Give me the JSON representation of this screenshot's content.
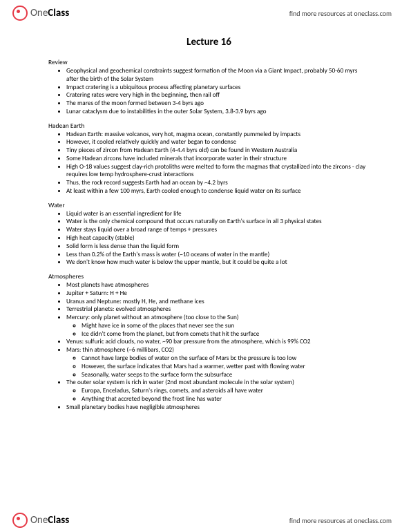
{
  "brand": {
    "prefix": "One",
    "suffix": "Class",
    "icon_color": "#e63946"
  },
  "header_link": "find more resources at oneclass.com",
  "footer_link": "find more resources at oneclass.com",
  "title": "Lecture 16",
  "sections": [
    {
      "heading": "Review",
      "items": [
        {
          "t": "Geophysical and geochemical constraints suggest formation of the Moon via a Giant Impact, probably 50-60 myrs after the birth of the Solar System"
        },
        {
          "t": "Impact cratering is a ubiquitous process affecting planetary surfaces"
        },
        {
          "t": "Cratering rates were very high in the beginning, then rail off"
        },
        {
          "t": "The mares of the moon formed between 3-4 byrs ago"
        },
        {
          "t": "Lunar cataclysm due to instabilities in the outer Solar System, 3.8-3.9 byrs ago"
        }
      ]
    },
    {
      "heading": "Hadean Earth",
      "items": [
        {
          "t": "Hadean Earth: massive volcanos, very hot, magma ocean, constantly pummeled by impacts"
        },
        {
          "t": "However, it cooled relatively quickly and water began to condense"
        },
        {
          "t": "Tiny pieces of zircon from Hadean Earth (4-4.4 byrs old) can be found in Western Australia"
        },
        {
          "t": "Some Hadean zircons have included minerals that incorporate water in their structure"
        },
        {
          "t": "High O-18 values suggest clay-rich protoliths were melted to form the magmas that crystallized into the zircons - clay requires low temp hydrosphere-crust interactions"
        },
        {
          "t": "Thus, the rock record suggests Earth had an ocean by ~4.2 byrs"
        },
        {
          "t": "At least within a few 100 myrs, Earth cooled enough to condense liquid water on its surface"
        }
      ]
    },
    {
      "heading": "Water",
      "items": [
        {
          "t": "Liquid water is an essential ingredient for life"
        },
        {
          "t": "Water is the only chemical compound that occurs naturally on Earth's surface in all 3 physical states"
        },
        {
          "t": "Water stays liquid over a broad range of temps + pressures"
        },
        {
          "t": "High heat capacity (stable)"
        },
        {
          "t": "Solid form is less dense than the liquid form"
        },
        {
          "t": "Less than 0.2% of the Earth's mass is water (~10 oceans of water in the mantle)"
        },
        {
          "t": "We don't know how much water is below the upper mantle, but it could be quite a lot"
        }
      ]
    },
    {
      "heading": "Atmospheres",
      "items": [
        {
          "t": "Most planets have atmospheres"
        },
        {
          "t": "Jupiter + Saturn: H + He"
        },
        {
          "t": "Uranus and Neptune: mostly H, He, and methane ices"
        },
        {
          "t": "Terrestrial planets: evolved atmospheres"
        },
        {
          "t": "Mercury: only planet without an atmosphere (too close to the Sun)",
          "sub": [
            "Might have ice in some of the places that never see the sun",
            "Ice didn't come from the planet, but from comets that hit the surface"
          ]
        },
        {
          "t": "Venus: sulfuric acid clouds, no water, ~90 bar pressure from the atmosphere, which is 99% CO2"
        },
        {
          "t": "Mars: thin atmosphere (~6 millibars, CO2)",
          "sub": [
            "Cannot have large bodies of water on the surface of Mars bc the pressure is too low",
            "However, the surface indicates that Mars had a warmer, wetter past with flowing water",
            "Seasonally, water seeps to the surface form the subsurface"
          ]
        },
        {
          "t": "The outer solar system is rich in water (2nd most abundant molecule in the solar system)",
          "sub": [
            "Europa, Enceladus, Saturn's rings, comets, and asteroids all have water",
            "Anything that accreted beyond the frost line has water"
          ]
        },
        {
          "t": "Small planetary bodies have negligible atmospheres"
        }
      ]
    }
  ]
}
